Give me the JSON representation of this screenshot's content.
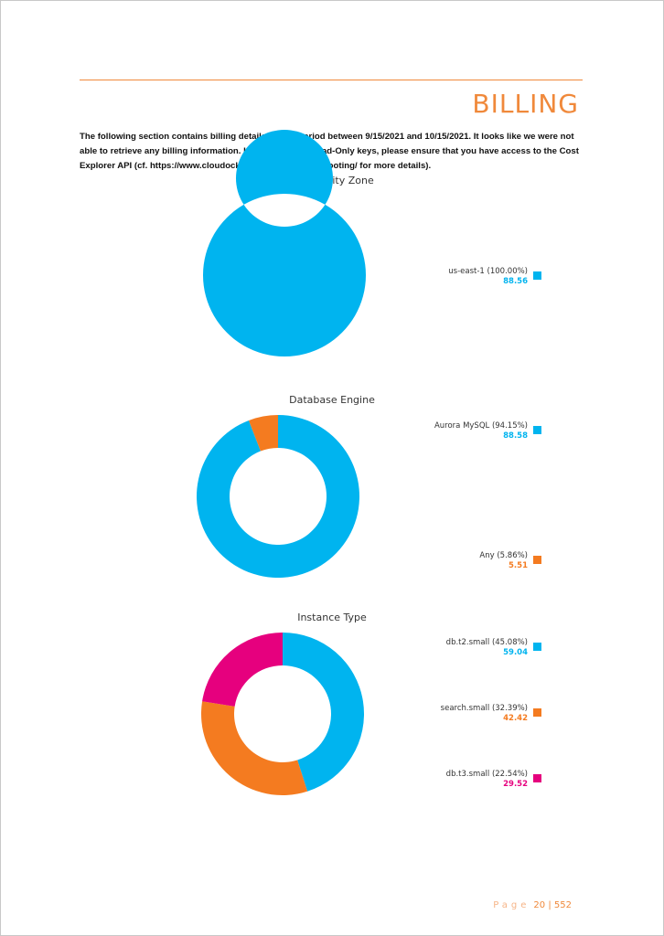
{
  "section": {
    "heading": "BILLING",
    "intro": "The following section contains billing details for the period between 9/15/2021 and 10/15/2021. It looks like we were not able to retrieve any billing information. If you are using Read-Only keys, please ensure that you have access to the Cost Explorer API (cf. https://www.cloudockit.com/aws-troubleshooting/ for more details)."
  },
  "chart_data": [
    {
      "type": "pie",
      "title": "Availability Zone",
      "slices": [
        {
          "label": "us-east-1 (100.00%)",
          "value": 88.56,
          "value_label": "88.56",
          "color": "#00b4ef"
        }
      ]
    },
    {
      "type": "pie",
      "title": "Database Engine",
      "slices": [
        {
          "label": "Aurora MySQL (94.15%)",
          "value": 88.58,
          "value_label": "88.58",
          "color": "#00b4ef"
        },
        {
          "label": "Any (5.86%)",
          "value": 5.51,
          "value_label": "5.51",
          "color": "#f47b20"
        }
      ]
    },
    {
      "type": "pie",
      "title": "Instance Type",
      "slices": [
        {
          "label": "db.t2.small (45.08%)",
          "value": 59.04,
          "value_label": "59.04",
          "color": "#00b4ef"
        },
        {
          "label": "search.small (32.39%)",
          "value": 42.42,
          "value_label": "42.42",
          "color": "#f47b20"
        },
        {
          "label": "db.t3.small (22.54%)",
          "value": 29.52,
          "value_label": "29.52",
          "color": "#e6007e"
        }
      ]
    }
  ],
  "footer": {
    "page_word": "Page",
    "page_current": "20",
    "separator": "|",
    "page_total": "552"
  }
}
